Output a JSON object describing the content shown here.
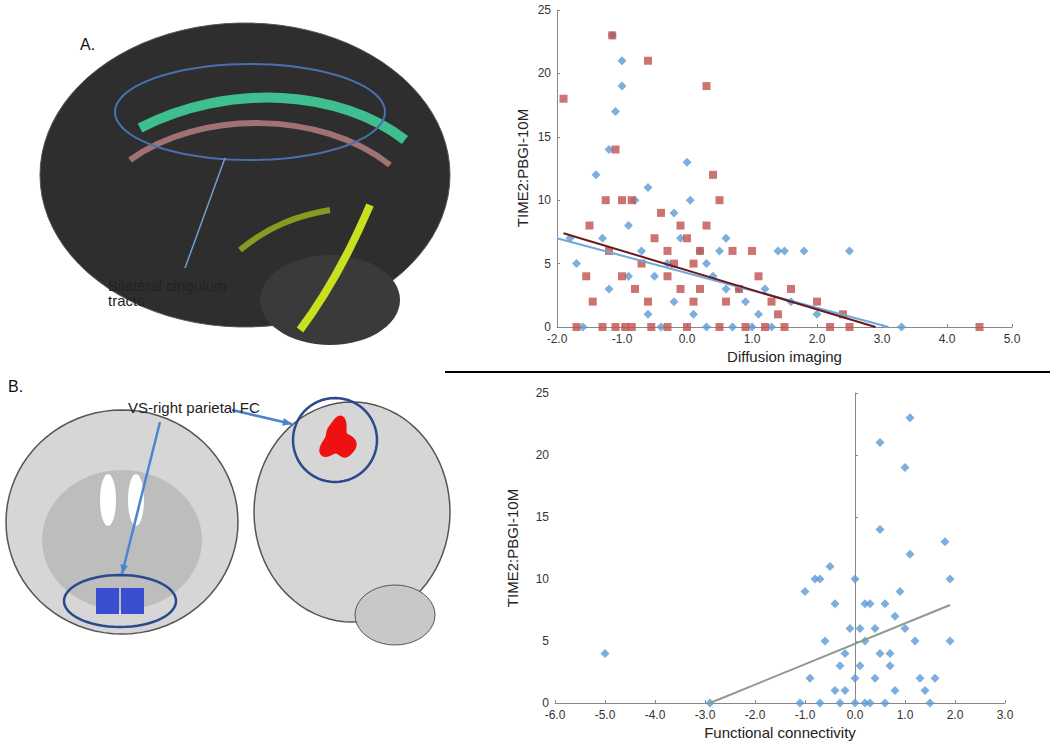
{
  "chart_data": [
    {
      "type": "scatter",
      "title": "A.",
      "annotations": [
        "Bilateral cingulum tracts"
      ],
      "x_label": "Diffusion imaging",
      "y_label": "TIME2:PBGI-10M",
      "xlim": [
        -2,
        5
      ],
      "xticks": [
        {
          "value": -2,
          "label": "-2.0"
        },
        {
          "value": -1,
          "label": "-1.0"
        },
        {
          "value": 0,
          "label": "0.0"
        },
        {
          "value": 1,
          "label": "1.0"
        },
        {
          "value": 2,
          "label": "2.0"
        },
        {
          "value": 3,
          "label": "3.0"
        },
        {
          "value": 4,
          "label": "4.0"
        },
        {
          "value": 5,
          "label": "5.0"
        }
      ],
      "ylim": [
        0,
        25
      ],
      "yticks": [
        0,
        5,
        10,
        15,
        20,
        25
      ],
      "grid": false,
      "series": [
        {
          "type": "scatter",
          "marker": "diamond",
          "color": "#5b9bd5",
          "values": [
            [
              -1.15,
              23
            ],
            [
              -1.0,
              21
            ],
            [
              -1.0,
              19
            ],
            [
              -1.1,
              17
            ],
            [
              -1.2,
              14
            ],
            [
              -1.4,
              12
            ],
            [
              -1.3,
              7
            ],
            [
              -0.8,
              10
            ],
            [
              -0.6,
              11
            ],
            [
              -0.7,
              6
            ],
            [
              -1.8,
              7
            ],
            [
              -1.7,
              5
            ],
            [
              -1.6,
              0
            ],
            [
              -0.9,
              8
            ],
            [
              -0.5,
              4
            ],
            [
              -0.3,
              5
            ],
            [
              0.0,
              13
            ],
            [
              0.05,
              10
            ],
            [
              -0.2,
              9
            ],
            [
              -0.1,
              7
            ],
            [
              0.2,
              6
            ],
            [
              0.3,
              5
            ],
            [
              0.4,
              4
            ],
            [
              0.5,
              6
            ],
            [
              0.6,
              7
            ],
            [
              0.8,
              3
            ],
            [
              0.9,
              2
            ],
            [
              0.7,
              0
            ],
            [
              1.0,
              0
            ],
            [
              1.2,
              3
            ],
            [
              1.4,
              6
            ],
            [
              1.5,
              6
            ],
            [
              1.6,
              2
            ],
            [
              1.8,
              6
            ],
            [
              2.5,
              6
            ],
            [
              2.0,
              1
            ],
            [
              3.3,
              0
            ],
            [
              -0.4,
              0
            ],
            [
              -0.6,
              1
            ],
            [
              -0.2,
              2
            ],
            [
              0.1,
              1
            ],
            [
              0.3,
              0
            ],
            [
              1.1,
              1
            ],
            [
              1.3,
              0
            ],
            [
              -1.2,
              3
            ],
            [
              -0.9,
              4
            ],
            [
              0.6,
              3
            ]
          ]
        },
        {
          "type": "scatter",
          "marker": "square",
          "color": "#c0504d",
          "values": [
            [
              -1.9,
              18
            ],
            [
              -1.15,
              23
            ],
            [
              -1.1,
              14
            ],
            [
              -1.25,
              10
            ],
            [
              -1.0,
              10
            ],
            [
              -0.85,
              10
            ],
            [
              -0.6,
              21
            ],
            [
              -1.5,
              8
            ],
            [
              -1.7,
              0
            ],
            [
              -1.55,
              4
            ],
            [
              -1.45,
              2
            ],
            [
              -1.3,
              0
            ],
            [
              -1.1,
              0
            ],
            [
              -0.95,
              0
            ],
            [
              -0.85,
              0
            ],
            [
              -1.2,
              6
            ],
            [
              -1.0,
              4
            ],
            [
              -0.7,
              5
            ],
            [
              -0.5,
              7
            ],
            [
              -0.4,
              9
            ],
            [
              -0.3,
              6
            ],
            [
              -0.3,
              4
            ],
            [
              -0.2,
              5
            ],
            [
              -0.1,
              8
            ],
            [
              0.0,
              7
            ],
            [
              0.1,
              5
            ],
            [
              0.2,
              3
            ],
            [
              0.3,
              19
            ],
            [
              0.3,
              8
            ],
            [
              0.4,
              12
            ],
            [
              0.1,
              2
            ],
            [
              0.0,
              0
            ],
            [
              -0.3,
              0
            ],
            [
              -0.55,
              0
            ],
            [
              -0.6,
              2
            ],
            [
              -0.8,
              3
            ],
            [
              0.5,
              0
            ],
            [
              0.6,
              2
            ],
            [
              0.7,
              6
            ],
            [
              0.8,
              3
            ],
            [
              0.9,
              0
            ],
            [
              1.0,
              6
            ],
            [
              1.1,
              4
            ],
            [
              1.3,
              2
            ],
            [
              1.4,
              1
            ],
            [
              1.5,
              0
            ],
            [
              1.6,
              3
            ],
            [
              2.0,
              2
            ],
            [
              2.2,
              0
            ],
            [
              2.4,
              1
            ],
            [
              2.5,
              0
            ],
            [
              4.5,
              0
            ],
            [
              0.5,
              10
            ],
            [
              0.2,
              6
            ],
            [
              -0.1,
              3
            ],
            [
              1.2,
              0
            ]
          ]
        },
        {
          "type": "line",
          "line_style": "solid",
          "color": "#6fa8dc",
          "values": [
            [
              -2.0,
              7.0
            ],
            [
              3.1,
              0
            ]
          ]
        },
        {
          "type": "line",
          "line_style": "solid",
          "color": "#6b1a1a",
          "values": [
            [
              -1.9,
              7.4
            ],
            [
              2.9,
              0
            ]
          ]
        }
      ]
    },
    {
      "type": "scatter",
      "title": "B.",
      "annotations": [
        "VS-right parietal FC"
      ],
      "x_label": "Functional connectivity",
      "y_label": "TIME2:PBGI-10M",
      "xlim": [
        -6,
        3
      ],
      "xticks": [
        {
          "value": -6,
          "label": "-6.0"
        },
        {
          "value": -5,
          "label": "-5.0"
        },
        {
          "value": -4,
          "label": "-4.0"
        },
        {
          "value": -3,
          "label": "-3.0"
        },
        {
          "value": -2,
          "label": "-2.0"
        },
        {
          "value": -1,
          "label": "-1.0"
        },
        {
          "value": 0,
          "label": "0.0"
        },
        {
          "value": 1,
          "label": "1.0"
        },
        {
          "value": 2,
          "label": "2.0"
        },
        {
          "value": 3,
          "label": "3.0"
        }
      ],
      "ylim": [
        0,
        25
      ],
      "yticks": [
        0,
        5,
        10,
        15,
        20,
        25
      ],
      "grid": false,
      "series": [
        {
          "type": "scatter",
          "marker": "diamond",
          "color": "#5b9bd5",
          "values": [
            [
              -5,
              4
            ],
            [
              -2.9,
              0
            ],
            [
              -1.0,
              9
            ],
            [
              -0.8,
              10
            ],
            [
              -0.7,
              10
            ],
            [
              -0.5,
              11
            ],
            [
              -0.4,
              8
            ],
            [
              -0.6,
              5
            ],
            [
              -0.9,
              2
            ],
            [
              -0.7,
              0
            ],
            [
              -0.4,
              1
            ],
            [
              -0.3,
              3
            ],
            [
              -0.2,
              4
            ],
            [
              -0.1,
              6
            ],
            [
              0.0,
              10
            ],
            [
              0.1,
              6
            ],
            [
              0.2,
              8
            ],
            [
              0.3,
              8
            ],
            [
              0.1,
              3
            ],
            [
              0.0,
              0
            ],
            [
              -0.2,
              1
            ],
            [
              0.3,
              0
            ],
            [
              0.4,
              2
            ],
            [
              0.5,
              21
            ],
            [
              0.5,
              14
            ],
            [
              0.6,
              8
            ],
            [
              0.7,
              4
            ],
            [
              0.8,
              1
            ],
            [
              0.9,
              9
            ],
            [
              1.0,
              19
            ],
            [
              1.1,
              23
            ],
            [
              1.1,
              12
            ],
            [
              1.0,
              6
            ],
            [
              1.2,
              5
            ],
            [
              1.3,
              2
            ],
            [
              1.5,
              0
            ],
            [
              1.6,
              2
            ],
            [
              1.8,
              13
            ],
            [
              1.9,
              10
            ],
            [
              1.9,
              5
            ],
            [
              0.4,
              6
            ],
            [
              0.2,
              5
            ],
            [
              -0.3,
              0
            ],
            [
              0.6,
              0
            ],
            [
              0.8,
              7
            ],
            [
              1.4,
              1
            ],
            [
              -1.1,
              0
            ],
            [
              0.0,
              2
            ],
            [
              0.2,
              0
            ],
            [
              0.5,
              4
            ],
            [
              0.7,
              3
            ]
          ]
        },
        {
          "type": "line",
          "line_style": "solid",
          "color": "#8c9c8c",
          "values": [
            [
              -2.9,
              0
            ],
            [
              1.9,
              7.9
            ]
          ]
        }
      ]
    }
  ]
}
